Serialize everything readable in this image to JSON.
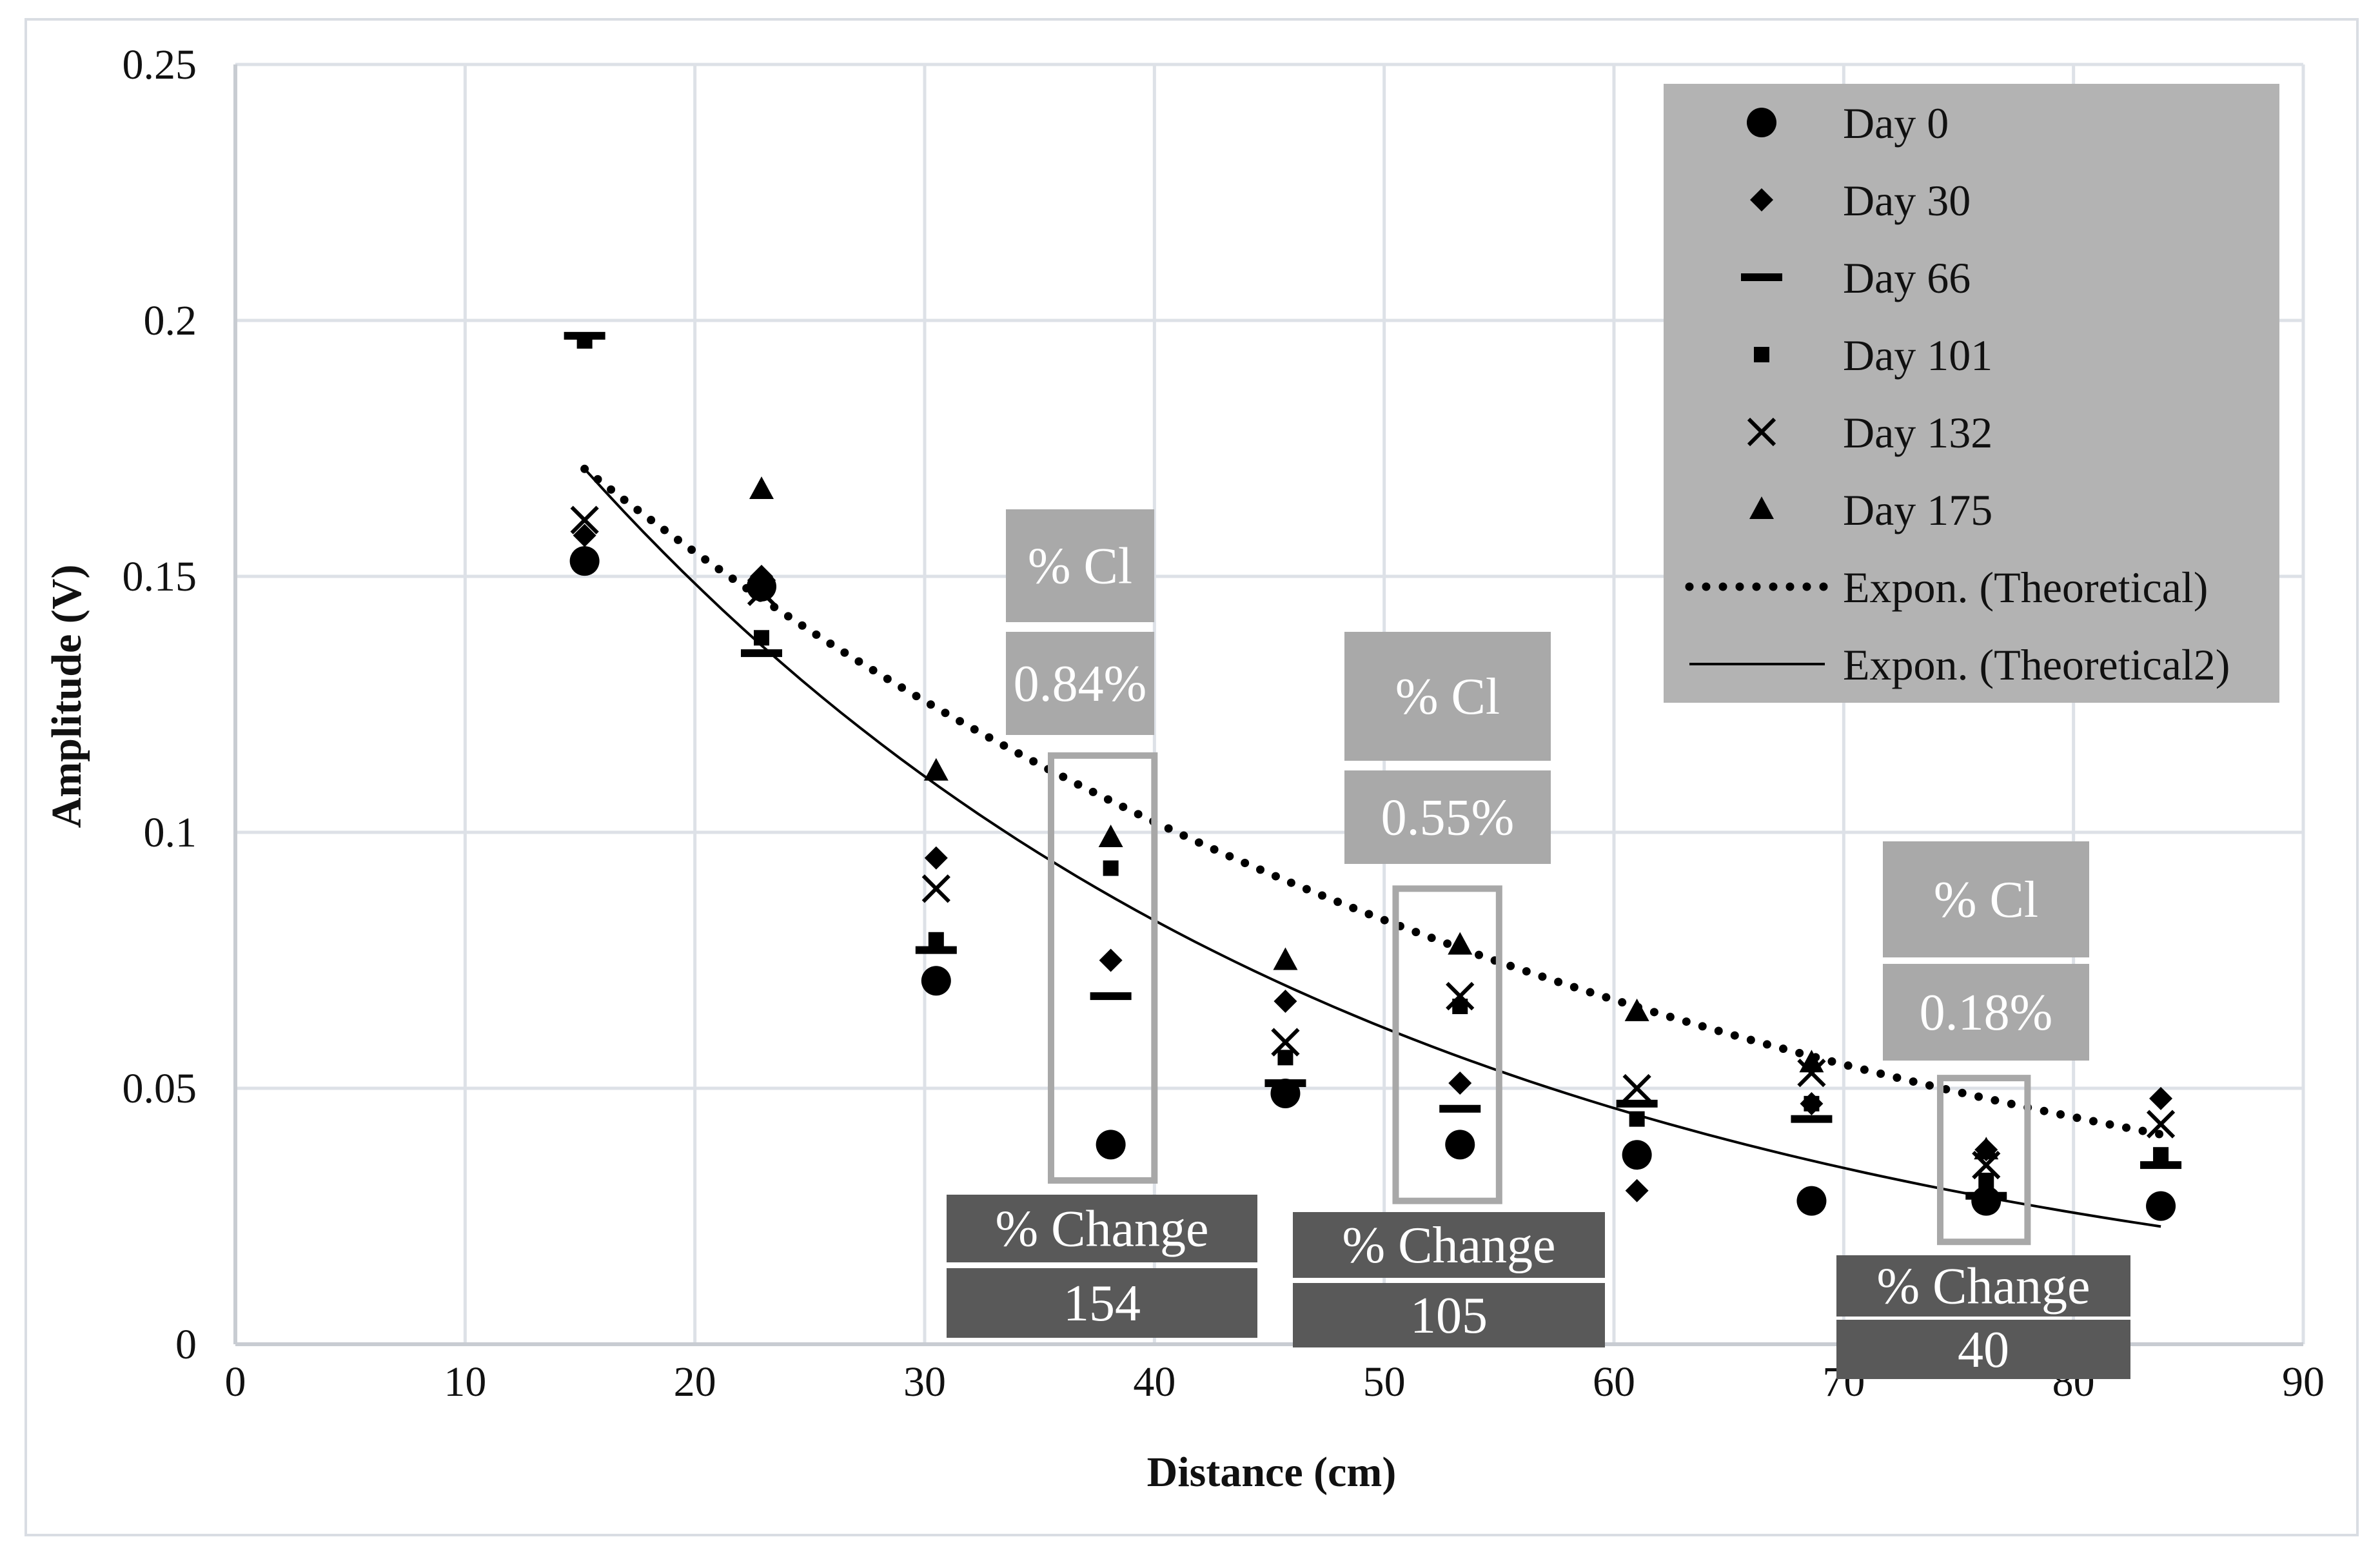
{
  "chart_data": {
    "type": "scatter",
    "title": "",
    "xlabel": "Distance (cm)",
    "ylabel": "Amplitude (V)",
    "xlim": [
      0,
      90
    ],
    "ylim": [
      0,
      0.25
    ],
    "grid": true,
    "x_ticks": [
      0,
      10,
      20,
      30,
      40,
      50,
      60,
      70,
      80,
      90
    ],
    "x_tick_labels": [
      "0",
      "10",
      "20",
      "30",
      "40",
      "50",
      "60",
      "70",
      "80",
      "90"
    ],
    "y_ticks": [
      0,
      0.05,
      0.1,
      0.15,
      0.2,
      0.25
    ],
    "y_tick_labels": [
      "0",
      "0.05",
      "0.1",
      "0.15",
      "0.2",
      "0.25"
    ],
    "x": [
      15.2,
      22.9,
      30.5,
      38.1,
      45.7,
      53.3,
      61.0,
      68.6,
      76.2,
      83.8
    ],
    "series": [
      {
        "name": "Day 0",
        "marker": "circle",
        "values": [
          0.153,
          0.148,
          0.071,
          0.039,
          0.049,
          0.039,
          0.037,
          0.028,
          0.028,
          0.027
        ]
      },
      {
        "name": "Day 30",
        "marker": "diamond",
        "values": [
          0.158,
          0.15,
          0.095,
          0.075,
          0.067,
          0.051,
          0.03,
          0.047,
          0.038,
          0.048
        ]
      },
      {
        "name": "Day 66",
        "marker": "dash",
        "values": [
          0.197,
          0.135,
          0.077,
          0.068,
          0.051,
          0.046,
          0.047,
          0.044,
          0.029,
          0.035
        ]
      },
      {
        "name": "Day 101",
        "marker": "square",
        "values": [
          0.196,
          0.138,
          0.079,
          0.093,
          0.056,
          0.066,
          0.044,
          0.047,
          0.032,
          0.037
        ]
      },
      {
        "name": "Day 132",
        "marker": "x",
        "values": [
          0.161,
          0.147,
          0.089,
          null,
          0.059,
          0.068,
          0.05,
          0.053,
          0.035,
          0.043
        ]
      },
      {
        "name": "Day 175",
        "marker": "triangle",
        "values": [
          null,
          0.167,
          0.112,
          0.099,
          0.075,
          0.078,
          0.065,
          0.055,
          0.038,
          null
        ]
      }
    ],
    "trendlines": [
      {
        "name": "Expon. (Theoretical)",
        "style": "dotted",
        "x_range": [
          15.2,
          83.8
        ],
        "y_start": 0.171,
        "y_end": 0.041
      },
      {
        "name": "Expon. (Theoretical2)",
        "style": "solid",
        "x_range": [
          15.2,
          83.8
        ],
        "y_start": 0.171,
        "y_end": 0.023
      }
    ],
    "legend_position": "top-right",
    "annotations": [
      {
        "id": "ann1",
        "cl_label": "% Cl",
        "cl_value": "0.84%",
        "change_label": "% Change",
        "change_value": "154",
        "x_range": [
          35.5,
          40
        ],
        "y_range": [
          0.032,
          0.115
        ]
      },
      {
        "id": "ann2",
        "cl_label": "% Cl",
        "cl_value": "0.55%",
        "change_label": "% Change",
        "change_value": "105",
        "x_range": [
          50.5,
          55
        ],
        "y_range": [
          0.028,
          0.089
        ]
      },
      {
        "id": "ann3",
        "cl_label": "% Cl",
        "cl_value": "0.18%",
        "change_label": "% Change",
        "change_value": "40",
        "x_range": [
          74.2,
          78
        ],
        "y_range": [
          0.02,
          0.052
        ]
      }
    ]
  },
  "colors": {
    "marker": "#000000",
    "grid": "#dde1e7",
    "legend_bg": "#b3b3b3",
    "cl_box": "#a9a9a9",
    "change_box": "#595959",
    "bracket": "#a8a8a8"
  }
}
